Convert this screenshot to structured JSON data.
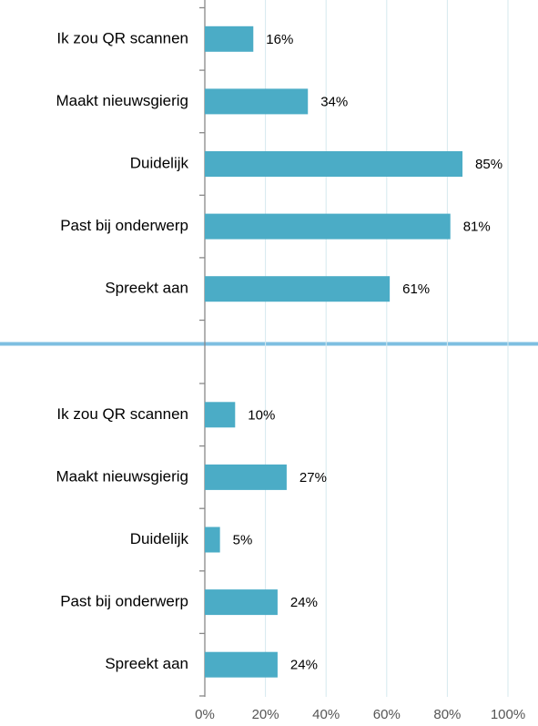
{
  "chart_data": [
    {
      "type": "bar",
      "categories": [
        "Ik zou QR scannen",
        "Maakt nieuwsgierig",
        "Duidelijk",
        "Past bij onderwerp",
        "Spreekt aan"
      ],
      "values": [
        16,
        34,
        85,
        81,
        61
      ],
      "value_labels": [
        "16%",
        "34%",
        "85%",
        "81%",
        "61%"
      ],
      "color": "#4bacc6",
      "xlim": [
        0,
        100
      ],
      "xticks": [
        0,
        20,
        40,
        60,
        80,
        100
      ],
      "grid": true
    },
    {
      "type": "bar",
      "categories": [
        "Ik zou QR scannen",
        "Maakt nieuwsgierig",
        "Duidelijk",
        "Past bij onderwerp",
        "Spreekt aan"
      ],
      "values": [
        10,
        27,
        5,
        24,
        24
      ],
      "value_labels": [
        "10%",
        "27%",
        "5%",
        "24%",
        "24%"
      ],
      "color": "#4bacc6",
      "xlim": [
        0,
        100
      ],
      "xticks": [
        {
          "value": 0,
          "label": "0%"
        },
        {
          "value": 20,
          "label": "20%"
        },
        {
          "value": 40,
          "label": "40%"
        },
        {
          "value": 60,
          "label": "60%"
        },
        {
          "value": 80,
          "label": "80%"
        },
        {
          "value": 100,
          "label": "100%"
        }
      ],
      "grid": true
    }
  ]
}
